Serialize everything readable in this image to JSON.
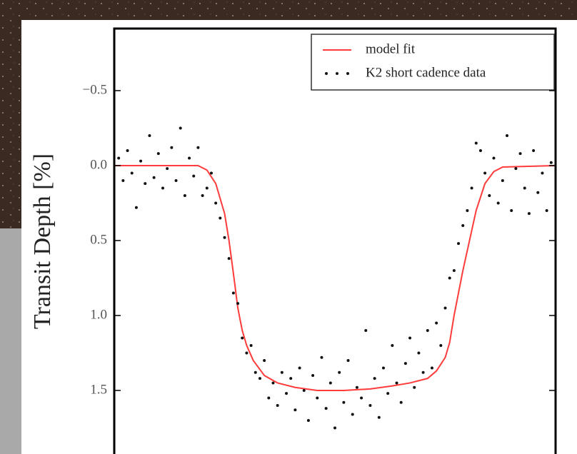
{
  "chart_data": {
    "type": "transit",
    "y_label": "Transit Depth [%]",
    "ylim": [
      -0.914,
      1.924
    ],
    "y_inverted": true,
    "yticks": [
      {
        "value": -0.5,
        "label": "−0.5"
      },
      {
        "value": 0,
        "label": "0.0"
      },
      {
        "value": 0.5,
        "label": "0.5"
      },
      {
        "value": 1,
        "label": "1.0"
      },
      {
        "value": 1.5,
        "label": "1.5"
      }
    ],
    "xlim": [
      0,
      1
    ],
    "legend": "upper right",
    "series": [
      {
        "name": "model fit",
        "kind": "line",
        "color": "#ff3b3b",
        "x": [
          0,
          0.1,
          0.19,
          0.21,
          0.23,
          0.25,
          0.26,
          0.27,
          0.28,
          0.29,
          0.3,
          0.315,
          0.34,
          0.37,
          0.41,
          0.46,
          0.52,
          0.58,
          0.63,
          0.67,
          0.71,
          0.73,
          0.75,
          0.76,
          0.77,
          0.78,
          0.79,
          0.805,
          0.82,
          0.84,
          0.86,
          0.88,
          1
        ],
        "values": [
          0,
          0,
          0,
          0.03,
          0.12,
          0.32,
          0.5,
          0.72,
          0.95,
          1.1,
          1.2,
          1.3,
          1.4,
          1.45,
          1.48,
          1.5,
          1.5,
          1.49,
          1.47,
          1.45,
          1.42,
          1.37,
          1.28,
          1.18,
          1.0,
          0.85,
          0.7,
          0.5,
          0.3,
          0.12,
          0.04,
          0.01,
          0
        ]
      },
      {
        "name": "K2 short cadence data",
        "kind": "scatter",
        "color": "#111111",
        "x": [
          0.01,
          0.02,
          0.03,
          0.04,
          0.05,
          0.06,
          0.07,
          0.08,
          0.09,
          0.1,
          0.11,
          0.12,
          0.13,
          0.14,
          0.15,
          0.16,
          0.17,
          0.18,
          0.19,
          0.2,
          0.21,
          0.22,
          0.23,
          0.24,
          0.25,
          0.26,
          0.27,
          0.28,
          0.29,
          0.3,
          0.31,
          0.32,
          0.33,
          0.34,
          0.35,
          0.36,
          0.37,
          0.38,
          0.39,
          0.4,
          0.41,
          0.42,
          0.43,
          0.44,
          0.45,
          0.46,
          0.47,
          0.48,
          0.49,
          0.5,
          0.51,
          0.52,
          0.53,
          0.54,
          0.55,
          0.56,
          0.57,
          0.58,
          0.59,
          0.6,
          0.61,
          0.62,
          0.63,
          0.64,
          0.65,
          0.66,
          0.67,
          0.68,
          0.69,
          0.7,
          0.71,
          0.72,
          0.73,
          0.74,
          0.75,
          0.76,
          0.77,
          0.78,
          0.79,
          0.8,
          0.81,
          0.82,
          0.83,
          0.84,
          0.85,
          0.86,
          0.87,
          0.88,
          0.89,
          0.9,
          0.91,
          0.92,
          0.93,
          0.94,
          0.95,
          0.96,
          0.97,
          0.98,
          0.99
        ],
        "values": [
          -0.05,
          0.1,
          -0.1,
          0.05,
          0.28,
          -0.03,
          0.12,
          -0.2,
          0.08,
          -0.08,
          0.15,
          0.02,
          -0.12,
          0.1,
          -0.25,
          0.2,
          -0.05,
          0.07,
          -0.12,
          0.2,
          0.15,
          0.05,
          0.25,
          0.35,
          0.48,
          0.62,
          0.85,
          0.92,
          1.15,
          1.25,
          1.2,
          1.38,
          1.42,
          1.3,
          1.55,
          1.45,
          1.6,
          1.38,
          1.52,
          1.42,
          1.63,
          1.35,
          1.5,
          1.7,
          1.4,
          1.55,
          1.28,
          1.62,
          1.45,
          1.75,
          1.38,
          1.58,
          1.3,
          1.66,
          1.48,
          1.55,
          1.1,
          1.6,
          1.42,
          1.68,
          1.35,
          1.52,
          1.2,
          1.45,
          1.58,
          1.32,
          1.15,
          1.48,
          1.25,
          1.38,
          1.1,
          1.35,
          1.05,
          1.2,
          0.95,
          0.75,
          0.7,
          0.52,
          0.4,
          0.3,
          0.15,
          -0.15,
          -0.1,
          0.05,
          0.2,
          -0.05,
          0.25,
          0.1,
          -0.2,
          0.3,
          0.02,
          -0.08,
          0.15,
          0.32,
          -0.1,
          0.18,
          0.05,
          0.3,
          -0.02
        ]
      }
    ]
  }
}
